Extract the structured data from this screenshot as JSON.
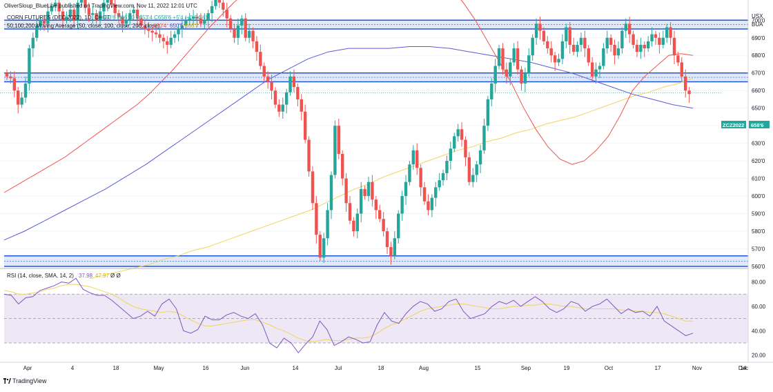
{
  "header": {
    "published": "OliverSloup_BlueLine published on TradingView.com, Nov 11, 2022 12:01 UTC",
    "symbol_line": "CORN FUTURES (DEC 2022), 1D, CBOT",
    "ohlc": "O653'6 H661'0 L653'4 C658'6 +5'4 (+0.84%)",
    "ma_label": "50,100,200 Moving Average (50, close, 100, close, 200, close)",
    "ma_values": [
      "680'4",
      "650'5",
      "666'7"
    ]
  },
  "price_axis": {
    "currency": "USX",
    "unit": "BUA",
    "ticks": [
      "700'0",
      "690'0",
      "680'0",
      "670'0",
      "660'0",
      "650'0",
      "640'0",
      "630'0",
      "620'0",
      "610'0",
      "600'0",
      "590'0",
      "580'0",
      "570'0",
      "560'0"
    ],
    "last_price_tag": "ZCZ2022",
    "last_price": "658'6"
  },
  "rsi": {
    "label": "RSI (14, close, SMA, 14, 2)",
    "rsi_value": "37.98",
    "sma_value": "47.97",
    "extra": "Ø Ø",
    "ticks": [
      "80.00",
      "60.00",
      "40.00",
      "20.00"
    ],
    "upper_band": 70,
    "lower_band": 30,
    "middle": 50
  },
  "time_axis": {
    "ticks": [
      "Apr",
      "4",
      "18",
      "May",
      "16",
      "Jun",
      "14",
      "Jul",
      "18",
      "Aug",
      "15",
      "Sep",
      "19",
      "Oct",
      "17",
      "Nov",
      "14",
      "Dec"
    ]
  },
  "footer": {
    "brand": "TradingView"
  },
  "colors": {
    "up": "#26a69a",
    "down": "#ef5350",
    "ma50": "#ef5350",
    "ma100": "#5b5bd6",
    "ma200": "#f5d76e",
    "zone_fill": "#c8d6ee",
    "zone_line": "#1e53e5",
    "rsi_line": "#7e57c2",
    "rsi_sma": "#f5d76e",
    "rsi_band": "#ede7f6",
    "last_price": "#26a69a"
  },
  "chart_data": {
    "type": "candlestick",
    "title": "CORN FUTURES (DEC 2022), 1D, CBOT",
    "x_range": [
      "2022-03-24",
      "2022-11-11"
    ],
    "y_range": [
      560,
      706
    ],
    "price_zones": [
      [
        695,
        700
      ],
      [
        665,
        670
      ],
      [
        560,
        566
      ]
    ],
    "candles_close": [
      668,
      667,
      660,
      652,
      656,
      664,
      684,
      690,
      697,
      700,
      698,
      705,
      708,
      710,
      705,
      700,
      702,
      706,
      700,
      710,
      715,
      707,
      703,
      704,
      700,
      705,
      710,
      712,
      709,
      704,
      702,
      698,
      700,
      704,
      706,
      701,
      697,
      695,
      694,
      693,
      692,
      690,
      688,
      686,
      690,
      692,
      695,
      697,
      700,
      701,
      702,
      701,
      698,
      700,
      704,
      708,
      712,
      710,
      706,
      701,
      695,
      690,
      697,
      701,
      690,
      694,
      688,
      682,
      674,
      668,
      665,
      660,
      652,
      648,
      652,
      659,
      668,
      662,
      655,
      648,
      632,
      614,
      596,
      578,
      565,
      576,
      592,
      612,
      640,
      624,
      610,
      596,
      586,
      580,
      590,
      604,
      600,
      608,
      598,
      592,
      587,
      580,
      571,
      566,
      576,
      590,
      600,
      608,
      618,
      626,
      616,
      605,
      597,
      592,
      599,
      605,
      609,
      613,
      620,
      627,
      634,
      638,
      632,
      622,
      608,
      612,
      618,
      626,
      640,
      655,
      664,
      674,
      684,
      672,
      668,
      676,
      684,
      672,
      664,
      670,
      680,
      690,
      698,
      694,
      688,
      684,
      680,
      676,
      678,
      688,
      696,
      686,
      682,
      686,
      690,
      684,
      676,
      668,
      672,
      674,
      684,
      690,
      686,
      680,
      684,
      694,
      698,
      692,
      686,
      682,
      686,
      684,
      688,
      692,
      690,
      686,
      690,
      696,
      690,
      680,
      676,
      668,
      660,
      658
    ],
    "ma50": [
      602,
      606,
      610,
      614,
      618,
      622,
      627,
      632,
      637,
      642,
      647,
      652,
      658,
      665,
      672,
      680,
      688,
      696,
      703,
      710,
      716,
      722,
      728,
      732,
      735,
      738,
      740,
      742,
      744,
      746,
      747,
      747,
      746,
      744,
      740,
      734,
      726,
      718,
      710,
      700,
      688,
      676,
      664,
      650,
      638,
      628,
      621,
      618,
      620,
      626,
      634,
      646,
      660,
      668,
      674,
      680,
      681,
      680
    ],
    "ma100": [
      575,
      580,
      586,
      592,
      598,
      604,
      611,
      618,
      626,
      634,
      642,
      650,
      658,
      666,
      672,
      678,
      682,
      684,
      684,
      684,
      685,
      685,
      684,
      682,
      680,
      678,
      676,
      673,
      670,
      666,
      662,
      658,
      655,
      652,
      650
    ],
    "ma200": [
      553,
      555,
      557,
      559,
      561,
      564,
      566,
      569,
      571,
      574,
      577,
      580,
      583,
      586,
      589,
      592,
      596,
      600,
      604,
      607,
      611,
      614,
      617,
      620,
      623,
      626,
      628,
      631,
      633,
      636,
      638,
      641,
      643,
      645,
      648,
      651,
      654,
      657,
      659,
      662,
      664,
      667
    ],
    "rsi_values": [
      70,
      69,
      62,
      67,
      68,
      73,
      75,
      77,
      80,
      79,
      83,
      74,
      71,
      69,
      69,
      65,
      60,
      55,
      50,
      52,
      56,
      52,
      62,
      66,
      58,
      40,
      38,
      41,
      52,
      49,
      49,
      53,
      55,
      52,
      50,
      54,
      45,
      30,
      26,
      34,
      30,
      22,
      29,
      35,
      48,
      41,
      28,
      31,
      35,
      33,
      30,
      31,
      45,
      55,
      48,
      46,
      54,
      60,
      64,
      62,
      56,
      58,
      64,
      66,
      56,
      50,
      52,
      54,
      60,
      64,
      62,
      65,
      60,
      64,
      68,
      64,
      58,
      55,
      58,
      64,
      62,
      56,
      60,
      62,
      66,
      60,
      54,
      58,
      55,
      56,
      52,
      60,
      48,
      44,
      40,
      36,
      38
    ],
    "rsi_sma": [
      73,
      72,
      70,
      70,
      71,
      72,
      74,
      75,
      77,
      78,
      78,
      77,
      76,
      74,
      72,
      70,
      67,
      63,
      60,
      58,
      57,
      56,
      55,
      56,
      55,
      52,
      49,
      46,
      44,
      44,
      45,
      46,
      47,
      48,
      49,
      49,
      47,
      45,
      42,
      40,
      37,
      34,
      32,
      31,
      32,
      33,
      32,
      32,
      33,
      34,
      34,
      35,
      38,
      42,
      45,
      47,
      50,
      53,
      56,
      58,
      59,
      60,
      61,
      62,
      62,
      61,
      60,
      59,
      58,
      58,
      59,
      60,
      60,
      61,
      61,
      62,
      62,
      61,
      60,
      60,
      59,
      58,
      58,
      58,
      58,
      58,
      57,
      57,
      56,
      56,
      55,
      55,
      54,
      52,
      50,
      48,
      48
    ]
  }
}
